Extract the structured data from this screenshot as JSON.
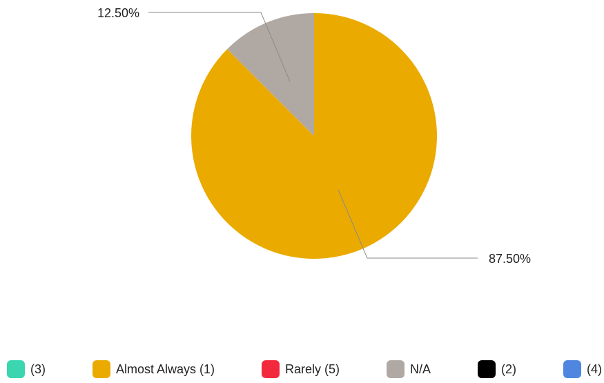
{
  "chart_data": {
    "type": "pie",
    "slices": [
      {
        "label": "Almost Always (1)",
        "value": 87.5,
        "display": "87.50%",
        "color": "#ebaa00"
      },
      {
        "label": "N/A",
        "value": 12.5,
        "display": "12.50%",
        "color": "#b0a8a3"
      }
    ],
    "legend": [
      {
        "label": "(3)",
        "color": "#3ad6b0"
      },
      {
        "label": "Almost Always (1)",
        "color": "#ebaa00"
      },
      {
        "label": "Rarely (5)",
        "color": "#f2293c"
      },
      {
        "label": "N/A",
        "color": "#b0a8a3"
      },
      {
        "label": "(2)",
        "color": "#000000"
      },
      {
        "label": "(4)",
        "color": "#4f86e0"
      }
    ],
    "legend_position": "bottom"
  }
}
